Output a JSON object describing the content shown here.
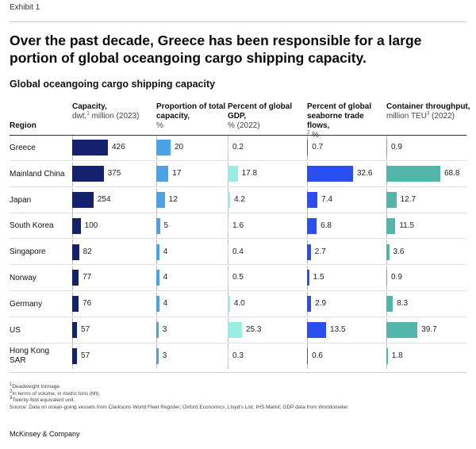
{
  "exhibit": "Exhibit 1",
  "headline": "Over the past decade, Greece has been responsible for a large portion of global oceangoing cargo shipping capacity.",
  "chart_data": {
    "type": "table",
    "title": "Global oceangoing cargo shipping capacity",
    "region_header": "Region",
    "columns": [
      {
        "key": "capacity",
        "title": "Capacity,",
        "unit_pre": "dwt,",
        "sup": "1",
        "unit_post": " million (2023)",
        "color": "#13216e",
        "max": 426
      },
      {
        "key": "proportion",
        "title": "Proportion of total capacity,",
        "unit_pre": "%",
        "sup": "",
        "unit_post": "",
        "color": "#4aa3e6",
        "max": 20
      },
      {
        "key": "gdp",
        "title": "Percent of global GDP,",
        "unit_pre": "% (2022)",
        "sup": "",
        "unit_post": "",
        "color": "#99ece4",
        "max": 25.3
      },
      {
        "key": "trade",
        "title": "Percent of global seaborne trade flows,",
        "unit_pre": "",
        "sup": "2",
        "unit_post": " %",
        "color": "#2a4ef0",
        "max": 32.6
      },
      {
        "key": "throughput",
        "title": "Container throughput,",
        "unit_pre": "million TEU",
        "sup": "3",
        "unit_post": " (2022)",
        "color": "#53b6ab",
        "max": 68.8
      }
    ],
    "rows": [
      {
        "region": "Greece",
        "capacity": 426,
        "proportion": 20,
        "gdp": 0.2,
        "trade": 0.7,
        "throughput": 0.9
      },
      {
        "region": "Mainland China",
        "capacity": 375,
        "proportion": 17,
        "gdp": 17.8,
        "trade": 32.6,
        "throughput": 68.8
      },
      {
        "region": "Japan",
        "capacity": 254,
        "proportion": 12,
        "gdp": 4.2,
        "trade": 7.4,
        "throughput": 12.7
      },
      {
        "region": "South Korea",
        "capacity": 100,
        "proportion": 5,
        "gdp": 1.6,
        "trade": 6.8,
        "throughput": 11.5
      },
      {
        "region": "Singapore",
        "capacity": 82,
        "proportion": 4,
        "gdp": 0.4,
        "trade": 2.7,
        "throughput": 3.6
      },
      {
        "region": "Norway",
        "capacity": 77,
        "proportion": 4,
        "gdp": 0.5,
        "trade": 1.5,
        "throughput": 0.9
      },
      {
        "region": "Germany",
        "capacity": 76,
        "proportion": 4,
        "gdp": 4.0,
        "trade": 2.9,
        "throughput": 8.3
      },
      {
        "region": "US",
        "capacity": 57,
        "proportion": 3,
        "gdp": 25.3,
        "trade": 13.5,
        "throughput": 39.7
      },
      {
        "region": "Hong Kong SAR",
        "capacity": 57,
        "proportion": 3,
        "gdp": 0.3,
        "trade": 0.6,
        "throughput": 1.8
      }
    ]
  },
  "notes": {
    "n1": "Deadweight tonnage.",
    "n2": "In terms of volume, in metric tons (Mt).",
    "n3": "Twenty-foot equivalent unit.",
    "source": "Source: Data on ocean-going vessels from Clarksons World Fleet Register; Oxford Economics; Lloyd’s List; IHS Markit; GDP data from Worldometer"
  },
  "brand": "McKinsey & Company"
}
